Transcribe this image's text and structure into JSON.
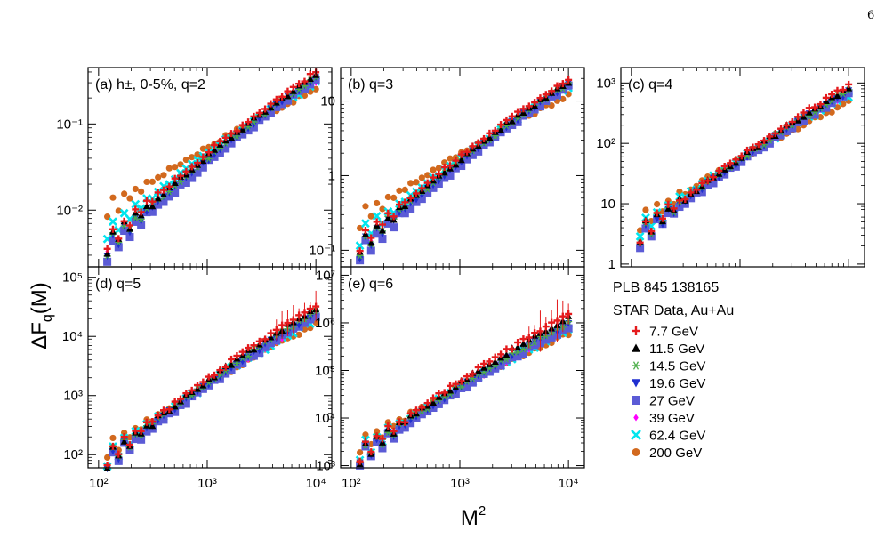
{
  "page": {
    "number": "6"
  },
  "figure": {
    "y_axis_label_main": "ΔF",
    "y_axis_label_sub": "q",
    "y_axis_label_tail": "(M)",
    "x_axis_label_main": "M",
    "x_axis_label_sup": "2",
    "legend_title_1": "PLB 845 138165",
    "legend_title_2": "STAR Data, Au+Au"
  },
  "chart_data": [
    {
      "type": "scatter",
      "panel": "a",
      "label": "(a) h±, 0-5%, q=2",
      "xscale": "log",
      "yscale": "log",
      "xlim": [
        80,
        14000
      ],
      "ylim": [
        0.0022,
        0.45
      ],
      "yticks": [
        {
          "v": 0.01,
          "label": "10⁻²"
        },
        {
          "v": 0.1,
          "label": "10⁻¹"
        }
      ],
      "series": [
        {
          "name": "7.7 GeV",
          "y_at_100": 0.0035,
          "y_at_10000": 0.4
        },
        {
          "name": "11.5 GeV",
          "y_at_100": 0.0032,
          "y_at_10000": 0.37
        },
        {
          "name": "14.5 GeV",
          "y_at_100": 0.003,
          "y_at_10000": 0.35
        },
        {
          "name": "19.6 GeV",
          "y_at_100": 0.0028,
          "y_at_10000": 0.34
        },
        {
          "name": "27 GeV",
          "y_at_100": 0.0025,
          "y_at_10000": 0.32
        },
        {
          "name": "39 GeV",
          "y_at_100": 0.0033,
          "y_at_10000": 0.31
        },
        {
          "name": "62.4 GeV",
          "y_at_100": 0.0045,
          "y_at_10000": 0.3
        },
        {
          "name": "200 GeV",
          "y_at_100": 0.0085,
          "y_at_10000": 0.25
        }
      ]
    },
    {
      "type": "scatter",
      "panel": "b",
      "label": "(b) q=3",
      "xscale": "log",
      "yscale": "log",
      "xlim": [
        80,
        14000
      ],
      "ylim": [
        0.06,
        28
      ],
      "yticks": [
        {
          "v": 0.1,
          "label": "10⁻¹"
        },
        {
          "v": 1,
          "label": "1"
        },
        {
          "v": 10,
          "label": "10"
        }
      ],
      "series": [
        {
          "name": "7.7 GeV",
          "y_at_100": 0.1,
          "y_at_10000": 20
        },
        {
          "name": "11.5 GeV",
          "y_at_100": 0.09,
          "y_at_10000": 18.5
        },
        {
          "name": "14.5 GeV",
          "y_at_100": 0.085,
          "y_at_10000": 17.5
        },
        {
          "name": "19.6 GeV",
          "y_at_100": 0.08,
          "y_at_10000": 17
        },
        {
          "name": "27 GeV",
          "y_at_100": 0.07,
          "y_at_10000": 16
        },
        {
          "name": "39 GeV",
          "y_at_100": 0.09,
          "y_at_10000": 15.5
        },
        {
          "name": "62.4 GeV",
          "y_at_100": 0.12,
          "y_at_10000": 15
        },
        {
          "name": "200 GeV",
          "y_at_100": 0.22,
          "y_at_10000": 12
        }
      ]
    },
    {
      "type": "scatter",
      "panel": "c",
      "label": "(c) q=4",
      "xscale": "log",
      "yscale": "log",
      "xlim": [
        80,
        14000
      ],
      "ylim": [
        0.9,
        1800
      ],
      "yticks": [
        {
          "v": 1,
          "label": "1"
        },
        {
          "v": 10,
          "label": "10"
        },
        {
          "v": 100,
          "label": "10²"
        },
        {
          "v": 1000,
          "label": "10³"
        }
      ],
      "series": [
        {
          "name": "7.7 GeV",
          "y_at_100": 2.5,
          "y_at_10000": 900
        },
        {
          "name": "11.5 GeV",
          "y_at_100": 2.4,
          "y_at_10000": 800
        },
        {
          "name": "14.5 GeV",
          "y_at_100": 2.3,
          "y_at_10000": 760
        },
        {
          "name": "19.6 GeV",
          "y_at_100": 2.2,
          "y_at_10000": 720
        },
        {
          "name": "27 GeV",
          "y_at_100": 2.0,
          "y_at_10000": 680
        },
        {
          "name": "39 GeV",
          "y_at_100": 2.4,
          "y_at_10000": 650
        },
        {
          "name": "62.4 GeV",
          "y_at_100": 2.9,
          "y_at_10000": 620
        },
        {
          "name": "200 GeV",
          "y_at_100": 4.0,
          "y_at_10000": 480
        }
      ]
    },
    {
      "type": "scatter",
      "panel": "d",
      "label": "(d) q=5",
      "xscale": "log",
      "yscale": "log",
      "xlim": [
        80,
        14000
      ],
      "ylim": [
        60,
        150000
      ],
      "yticks": [
        {
          "v": 100,
          "label": "10²"
        },
        {
          "v": 1000,
          "label": "10³"
        },
        {
          "v": 10000,
          "label": "10⁴"
        },
        {
          "v": 100000,
          "label": "10⁵"
        }
      ],
      "xticks": [
        {
          "v": 100,
          "label": "10²"
        },
        {
          "v": 1000,
          "label": "10³"
        },
        {
          "v": 10000,
          "label": "10⁴"
        }
      ],
      "series": [
        {
          "name": "7.7 GeV",
          "y_at_100": 65,
          "y_at_10000": 33000
        },
        {
          "name": "11.5 GeV",
          "y_at_100": 62,
          "y_at_10000": 30000
        },
        {
          "name": "14.5 GeV",
          "y_at_100": 60,
          "y_at_10000": 26000
        },
        {
          "name": "19.6 GeV",
          "y_at_100": 58,
          "y_at_10000": 24000
        },
        {
          "name": "27 GeV",
          "y_at_100": 52,
          "y_at_10000": 22000
        },
        {
          "name": "39 GeV",
          "y_at_100": 60,
          "y_at_10000": 21000
        },
        {
          "name": "62.4 GeV",
          "y_at_100": 70,
          "y_at_10000": 20000
        },
        {
          "name": "200 GeV",
          "y_at_100": 95,
          "y_at_10000": 16000
        }
      ]
    },
    {
      "type": "scatter",
      "panel": "e",
      "label": "(e) q=6",
      "xscale": "log",
      "yscale": "log",
      "xlim": [
        80,
        14000
      ],
      "ylim": [
        900,
        15000000
      ],
      "yticks": [
        {
          "v": 1000,
          "label": "10³"
        },
        {
          "v": 10000,
          "label": "10⁴"
        },
        {
          "v": 100000,
          "label": "10⁵"
        },
        {
          "v": 1000000,
          "label": "10⁶"
        },
        {
          "v": 10000000,
          "label": "10⁷"
        }
      ],
      "xticks": [
        {
          "v": 100,
          "label": "10²"
        },
        {
          "v": 1000,
          "label": "10³"
        },
        {
          "v": 10000,
          "label": "10⁴"
        }
      ],
      "series": [
        {
          "name": "7.7 GeV",
          "y_at_100": 1300,
          "y_at_10000": 1500000
        },
        {
          "name": "11.5 GeV",
          "y_at_100": 1250,
          "y_at_10000": 1300000
        },
        {
          "name": "14.5 GeV",
          "y_at_100": 1200,
          "y_at_10000": 1000000
        },
        {
          "name": "19.6 GeV",
          "y_at_100": 1150,
          "y_at_10000": 900000
        },
        {
          "name": "27 GeV",
          "y_at_100": 1000,
          "y_at_10000": 800000
        },
        {
          "name": "39 GeV",
          "y_at_100": 1200,
          "y_at_10000": 780000
        },
        {
          "name": "62.4 GeV",
          "y_at_100": 1400,
          "y_at_10000": 750000
        },
        {
          "name": "200 GeV",
          "y_at_100": 2000,
          "y_at_10000": 600000
        }
      ]
    }
  ],
  "legend": [
    {
      "label": "7.7 GeV",
      "color": "#e41a1c",
      "marker": "plus"
    },
    {
      "label": "11.5 GeV",
      "color": "#000000",
      "marker": "triangle-up"
    },
    {
      "label": "14.5 GeV",
      "color": "#4daf4a",
      "marker": "star"
    },
    {
      "label": "19.6 GeV",
      "color": "#1f2fd0",
      "marker": "triangle-down"
    },
    {
      "label": "27 GeV",
      "color": "#5b5bd6",
      "marker": "square"
    },
    {
      "label": "39 GeV",
      "color": "#ff00ff",
      "marker": "diamond"
    },
    {
      "label": "62.4 GeV",
      "color": "#00e5ee",
      "marker": "cross"
    },
    {
      "label": "200 GeV",
      "color": "#d2691e",
      "marker": "circle"
    }
  ]
}
